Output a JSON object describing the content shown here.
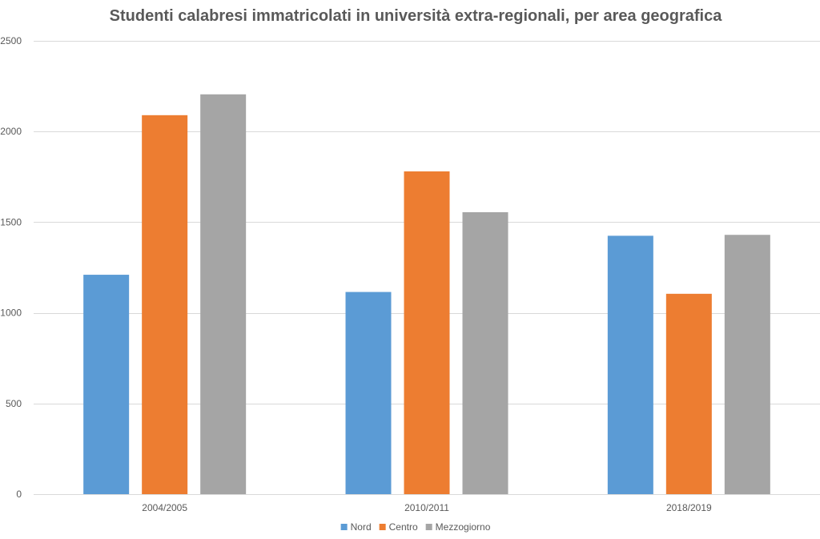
{
  "chart_data": {
    "type": "bar",
    "title": "Studenti calabresi immatricolati in università extra-regionali, per area geografica",
    "xlabel": "",
    "ylabel": "",
    "categories": [
      "2004/2005",
      "2010/2011",
      "2018/2019"
    ],
    "series": [
      {
        "name": "Nord",
        "color": "#5b9bd5",
        "values": [
          1210,
          1115,
          1425
        ]
      },
      {
        "name": "Centro",
        "color": "#ed7d31",
        "values": [
          2090,
          1780,
          1105
        ]
      },
      {
        "name": "Mezzogiorno",
        "color": "#a5a5a5",
        "values": [
          2205,
          1555,
          1430
        ]
      }
    ],
    "ylim": [
      0,
      2500
    ],
    "yticks": [
      0,
      500,
      1000,
      1500,
      2000,
      2500
    ],
    "ytick_labels": [
      "0",
      "500",
      "1000",
      "1500",
      "2000",
      "2500"
    ],
    "grid": true,
    "legend_position": "bottom"
  }
}
